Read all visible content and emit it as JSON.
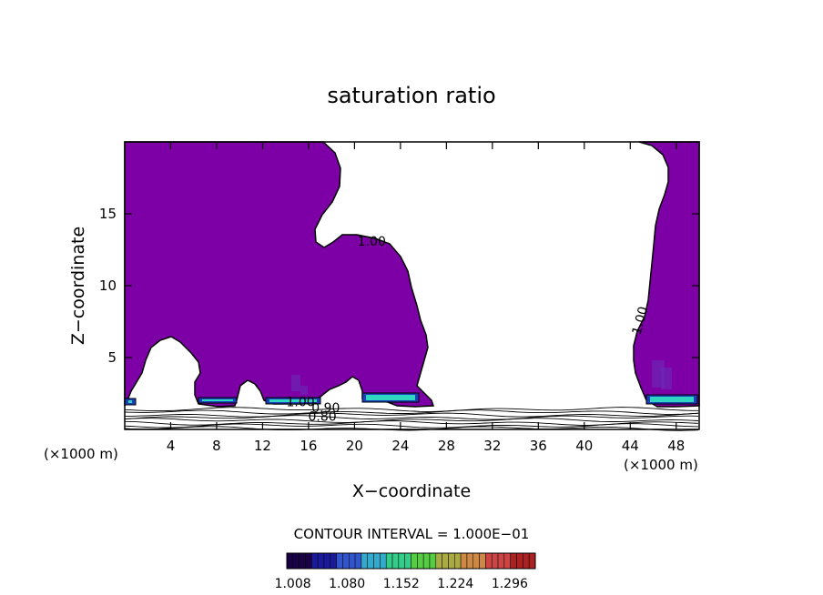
{
  "chart_data": {
    "type": "contour",
    "title": "saturation ratio",
    "xlabel": "X−coordinate",
    "ylabel": "Z−coordinate",
    "x_unit_left": "(×1000 m)",
    "x_unit_right": "(×1000 m)",
    "xlim": [
      0,
      50
    ],
    "ylim": [
      0,
      20
    ],
    "x_ticks": [
      "4",
      "8",
      "12",
      "16",
      "20",
      "24",
      "28",
      "32",
      "36",
      "40",
      "44",
      "48"
    ],
    "y_ticks": [
      "5",
      "10",
      "15"
    ],
    "fill_threshold": 1.0,
    "fill_color": "#7d00a6",
    "contour_labels": [
      {
        "x": 21.5,
        "y": 12.8,
        "text": "1.00",
        "rotation": 0
      },
      {
        "x": 45.2,
        "y": 7.5,
        "text": "1.00",
        "rotation": -75
      },
      {
        "x": 15.3,
        "y": 1.6,
        "text": "1.00",
        "rotation": 0
      },
      {
        "x": 17.5,
        "y": 1.2,
        "text": "0.90",
        "rotation": 0
      },
      {
        "x": 17.2,
        "y": 0.6,
        "text": "0.80",
        "rotation": 0
      }
    ],
    "contour_interval_text": "CONTOUR INTERVAL =  1.000E−01",
    "colorbar": {
      "range": [
        1.0,
        1.33
      ],
      "tick_labels": [
        "1.008",
        "1.080",
        "1.152",
        "1.224",
        "1.296"
      ],
      "colors": [
        "#1a0044",
        "#1a1a9a",
        "#3355cc",
        "#33aacc",
        "#33cc88",
        "#55cc44",
        "#aaaa44",
        "#cc8844",
        "#cc4444",
        "#aa2222"
      ]
    }
  }
}
